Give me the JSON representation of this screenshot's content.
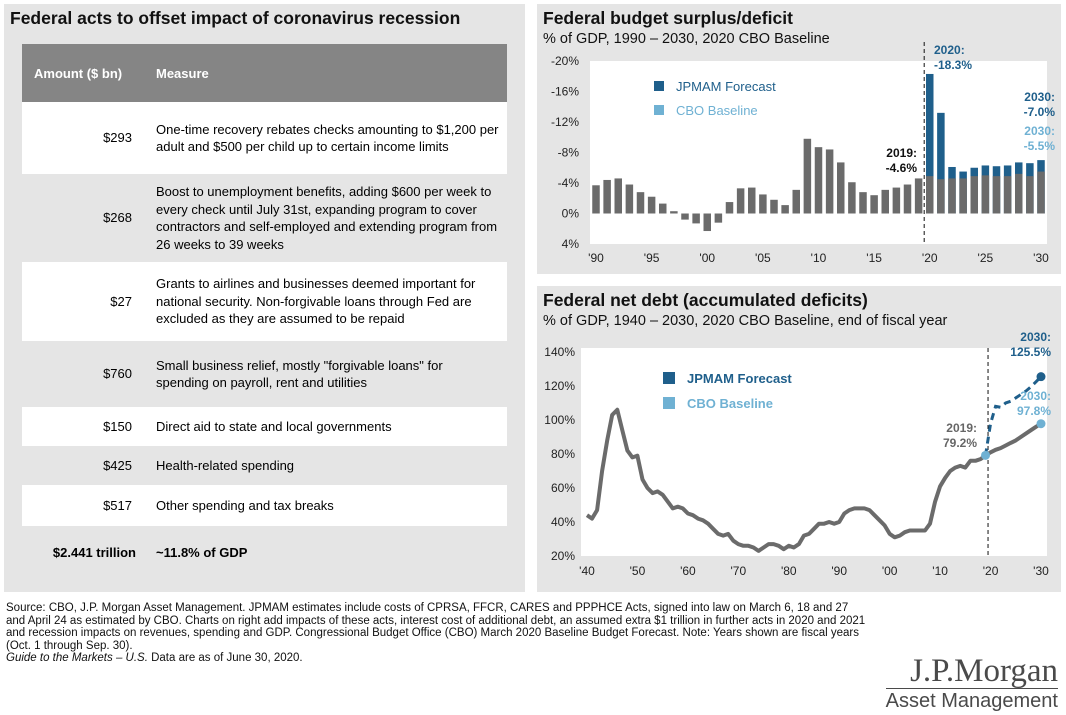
{
  "left": {
    "title": "Federal acts to offset impact of coronavirus recession",
    "headers": {
      "amount": "Amount ($ bn)",
      "measure": "Measure"
    },
    "rows": [
      {
        "amount": "$293",
        "measure": "One-time recovery rebates checks amounting to $1,200 per adult and $500 per child up to certain income limits"
      },
      {
        "amount": "$268",
        "measure": "Boost to unemployment benefits, adding $600 per week to every check until July 31st, expanding program to cover contractors and self-employed and extending program from 26 weeks to 39 weeks"
      },
      {
        "amount": "$27",
        "measure": "Grants to airlines and businesses deemed important for national security.  Non-forgivable loans through Fed are excluded as they are assumed to be repaid"
      },
      {
        "amount": "$760",
        "measure": "Small business relief, mostly \"forgivable loans\" for spending on payroll, rent and utilities"
      },
      {
        "amount": "$150",
        "measure": "Direct aid to state and local governments"
      },
      {
        "amount": "$425",
        "measure": "Health-related spending"
      },
      {
        "amount": "$517",
        "measure": "Other spending and tax breaks"
      },
      {
        "amount": "$2.441 trillion",
        "measure": "~11.8% of GDP"
      }
    ]
  },
  "bar_panel": {
    "title": "Federal budget surplus/deficit",
    "subtitle": "% of GDP, 1990 – 2030, 2020 CBO Baseline"
  },
  "line_panel": {
    "title": "Federal net debt (accumulated deficits)",
    "subtitle": "% of GDP, 1940 – 2030, 2020 CBO Baseline, end of fiscal year"
  },
  "colors": {
    "jpmam": "#1f5f8b",
    "cbo": "#6fb1d3",
    "history": "#6b6b6b"
  },
  "chart_data": [
    {
      "type": "bar",
      "title": "Federal budget surplus/deficit",
      "ylim": [
        4,
        -20
      ],
      "yticks": [
        "-20%",
        "-16%",
        "-12%",
        "-8%",
        "-4%",
        "0%",
        "4%"
      ],
      "ytick_values": [
        -20,
        -16,
        -12,
        -8,
        -4,
        0,
        4
      ],
      "xticks": [
        "'90",
        "'95",
        "'00",
        "'05",
        "'10",
        "'15",
        "'20",
        "'25",
        "'30"
      ],
      "xtick_years": [
        1990,
        1995,
        2000,
        2005,
        2010,
        2015,
        2020,
        2025,
        2030
      ],
      "legend": [
        "JPMAM Forecast",
        "CBO Baseline"
      ],
      "years": [
        1990,
        1991,
        1992,
        1993,
        1994,
        1995,
        1996,
        1997,
        1998,
        1999,
        2000,
        2001,
        2002,
        2003,
        2004,
        2005,
        2006,
        2007,
        2008,
        2009,
        2010,
        2011,
        2012,
        2013,
        2014,
        2015,
        2016,
        2017,
        2018,
        2019,
        2020,
        2021,
        2022,
        2023,
        2024,
        2025,
        2026,
        2027,
        2028,
        2029,
        2030
      ],
      "series": [
        {
          "name": "Historical",
          "values": [
            -3.7,
            -4.4,
            -4.6,
            -3.8,
            -2.8,
            -2.2,
            -1.3,
            -0.3,
            0.8,
            1.3,
            2.3,
            1.2,
            -1.5,
            -3.3,
            -3.4,
            -2.5,
            -1.8,
            -1.1,
            -3.1,
            -9.8,
            -8.7,
            -8.4,
            -6.7,
            -4.1,
            -2.8,
            -2.4,
            -3.1,
            -3.4,
            -3.8,
            -4.6
          ]
        },
        {
          "name": "CBO Baseline",
          "values": [
            -4.9,
            -4.5,
            -4.6,
            -4.6,
            -4.9,
            -5.0,
            -4.9,
            -4.9,
            -5.2,
            -4.9,
            -5.5
          ],
          "start_year": 2020
        },
        {
          "name": "JPMAM Forecast",
          "values": [
            -18.3,
            -13.2,
            -6.1,
            -5.5,
            -6.0,
            -6.3,
            -6.2,
            -6.3,
            -6.7,
            -6.6,
            -7.0
          ],
          "start_year": 2020
        }
      ],
      "annotations": [
        {
          "text": "2019:",
          "text2": "-4.6%"
        },
        {
          "text": "2020:",
          "text2": "-18.3%"
        },
        {
          "text": "2030:",
          "text2": "-7.0%"
        },
        {
          "text": "2030:",
          "text2": "-5.5%"
        }
      ]
    },
    {
      "type": "line",
      "title": "Federal net debt (accumulated deficits)",
      "ylim": [
        20,
        140
      ],
      "yticks": [
        "140%",
        "120%",
        "100%",
        "80%",
        "60%",
        "40%",
        "20%"
      ],
      "ytick_values": [
        140,
        120,
        100,
        80,
        60,
        40,
        20
      ],
      "xticks": [
        "'40",
        "'50",
        "'60",
        "'70",
        "'80",
        "'90",
        "'00",
        "'10",
        "'20",
        "'30"
      ],
      "xtick_years": [
        1940,
        1950,
        1960,
        1970,
        1980,
        1990,
        2000,
        2010,
        2020,
        2030
      ],
      "legend": [
        "JPMAM Forecast",
        "CBO Baseline"
      ],
      "series": [
        {
          "name": "Historical",
          "x": [
            1940,
            1941,
            1942,
            1943,
            1944,
            1945,
            1946,
            1947,
            1948,
            1949,
            1950,
            1951,
            1952,
            1953,
            1954,
            1955,
            1956,
            1957,
            1958,
            1959,
            1960,
            1961,
            1962,
            1963,
            1964,
            1965,
            1966,
            1967,
            1968,
            1969,
            1970,
            1971,
            1972,
            1973,
            1974,
            1975,
            1976,
            1977,
            1978,
            1979,
            1980,
            1981,
            1982,
            1983,
            1984,
            1985,
            1986,
            1987,
            1988,
            1989,
            1990,
            1991,
            1992,
            1993,
            1994,
            1995,
            1996,
            1997,
            1998,
            1999,
            2000,
            2001,
            2002,
            2003,
            2004,
            2005,
            2006,
            2007,
            2008,
            2009,
            2010,
            2011,
            2012,
            2013,
            2014,
            2015,
            2016,
            2017,
            2018,
            2019
          ],
          "y": [
            44,
            42,
            47,
            70,
            88,
            103,
            106,
            94,
            82,
            78,
            79,
            65,
            60,
            57,
            58,
            56,
            52,
            48,
            49,
            48,
            45,
            44,
            42,
            41,
            39,
            36,
            33,
            32,
            33,
            29,
            27,
            26,
            26,
            25,
            23,
            25,
            27,
            27,
            26,
            24,
            26,
            25,
            27,
            32,
            33,
            36,
            39,
            39,
            40,
            39,
            40,
            45,
            47,
            48,
            48,
            48,
            47,
            44,
            41,
            38,
            33,
            31,
            32,
            34,
            35,
            35,
            35,
            35,
            39,
            52,
            61,
            66,
            70,
            72,
            73,
            72,
            76,
            76,
            77,
            79
          ]
        },
        {
          "name": "CBO Baseline",
          "x": [
            2019,
            2020,
            2021,
            2022,
            2023,
            2024,
            2025,
            2026,
            2027,
            2028,
            2029,
            2030
          ],
          "y": [
            79.2,
            81.0,
            82.5,
            83.5,
            85.0,
            86.5,
            88.0,
            90.0,
            92.0,
            94.0,
            96.0,
            97.8
          ]
        },
        {
          "name": "JPMAM Forecast",
          "x": [
            2019,
            2020,
            2021,
            2022,
            2023,
            2024,
            2025,
            2026,
            2027,
            2028,
            2029,
            2030
          ],
          "y": [
            79.2,
            98.0,
            108.0,
            107.5,
            110.0,
            111.0,
            113.0,
            115.0,
            117.0,
            119.5,
            122.5,
            125.5
          ]
        }
      ],
      "annotations": [
        {
          "text": "2019:",
          "text2": "79.2%"
        },
        {
          "text": "2030:",
          "text2": "125.5%"
        },
        {
          "text": "2030:",
          "text2": "97.8%"
        }
      ]
    }
  ],
  "footnote": {
    "source": "Source: CBO, J.P. Morgan Asset Management. JPMAM estimates include costs of CPRSA, FFCR, CARES and PPPHCE Acts, signed into law on March 6, 18 and 27 and April 24 as estimated by CBO. Charts on right add impacts of these acts, interest cost of additional debt, an assumed extra $1 trillion in further acts in 2020 and 2021 and recession impacts on revenues, spending and GDP. Congressional Budget Office (CBO) March 2020 Baseline Budget Forecast. Note: Years shown are fiscal years (Oct. 1 through Sep. 30).",
    "guide": "Guide to the Markets – U.S.",
    "as_of": " Data are as of June 30, 2020."
  },
  "logo": {
    "line1": "J.P.Morgan",
    "line2": "Asset Management"
  }
}
